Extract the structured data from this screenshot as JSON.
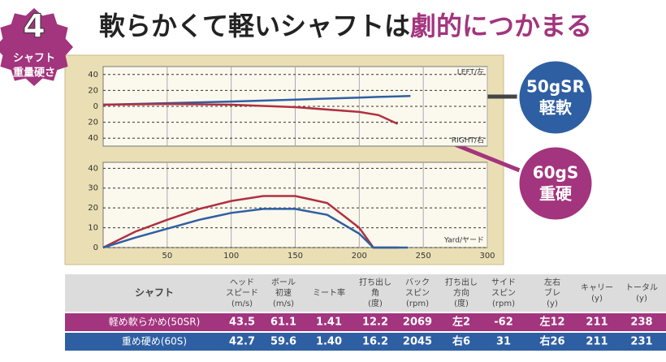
{
  "badge": {
    "number": "4",
    "lines": [
      "シャフト",
      "重量硬さ"
    ]
  },
  "title_main": "軟らかくて軽いシャフトは",
  "title_highlight": "劇的につかまる",
  "callouts": [
    {
      "lines": [
        "50gSR",
        "軽軟"
      ],
      "color": "#2e5fa3"
    },
    {
      "lines": [
        "60gS",
        "重硬"
      ],
      "color": "#a3347e"
    }
  ],
  "chart_data": [
    {
      "type": "line",
      "label_top": "LEFT/左",
      "label_bottom": "RIGHT/右",
      "x": [
        0,
        50,
        100,
        150,
        200,
        215,
        230,
        240
      ],
      "series": [
        {
          "color": "#2e5fa3",
          "values": [
            2,
            4,
            6,
            8.5,
            11,
            11.8,
            12.5,
            13
          ]
        },
        {
          "color": "#b0303f",
          "values": [
            2,
            3,
            2,
            -1,
            -7,
            -11,
            -22,
            null
          ]
        }
      ],
      "xlim": [
        0,
        300
      ],
      "ylim": [
        -50,
        50
      ],
      "yticks": [
        {
          "value": 40,
          "label": "40"
        },
        {
          "value": 20,
          "label": "20"
        },
        0,
        {
          "value": -20,
          "label": "20"
        },
        {
          "value": -40,
          "label": "40"
        }
      ],
      "grid": true
    },
    {
      "type": "line",
      "xlabel": "Yard/ヤード",
      "x": [
        0,
        25,
        50,
        75,
        100,
        125,
        150,
        175,
        200,
        211,
        231,
        238
      ],
      "series": [
        {
          "color": "#b0303f",
          "values": [
            0,
            8,
            14,
            19.5,
            23.5,
            26,
            26,
            22.5,
            10,
            0,
            0,
            null
          ]
        },
        {
          "color": "#2e5fa3",
          "values": [
            0,
            5,
            9.5,
            14,
            17.5,
            19.5,
            19.5,
            16.5,
            7,
            0,
            0,
            0
          ]
        }
      ],
      "xlim": [
        0,
        300
      ],
      "ylim": [
        0,
        43
      ],
      "xticks": [
        50,
        100,
        150,
        200,
        250,
        300
      ],
      "yticks": [
        0,
        10,
        20,
        30,
        40
      ],
      "grid": true
    }
  ],
  "table": {
    "header": [
      [
        "シャフト"
      ],
      [
        "ヘッド",
        "スピード",
        "(m/s)"
      ],
      [
        "ボール",
        "初速",
        "(m/s)"
      ],
      [
        "ミート率"
      ],
      [
        "打ち出し",
        "角",
        "(度)"
      ],
      [
        "バック",
        "スピン",
        "(rpm)"
      ],
      [
        "打ち出し",
        "方向",
        "(度)"
      ],
      [
        "サイド",
        "スピン",
        "(rpm)"
      ],
      [
        "左右",
        "ブレ",
        "(y)"
      ],
      [
        "キャリー",
        "(y)"
      ],
      [
        "トータル",
        "(y)"
      ]
    ],
    "rows": [
      {
        "color": "#a3347e",
        "cells": [
          "軽め軟らかめ(50SR)",
          "43.5",
          "61.1",
          "1.41",
          "12.2",
          "2069",
          "左2",
          "-62",
          "左12",
          "211",
          "238"
        ]
      },
      {
        "color": "#2e5fa3",
        "cells": [
          "重め硬め(60S)",
          "42.7",
          "59.6",
          "1.40",
          "16.2",
          "2045",
          "右6",
          "31",
          "右26",
          "211",
          "231"
        ]
      }
    ]
  }
}
